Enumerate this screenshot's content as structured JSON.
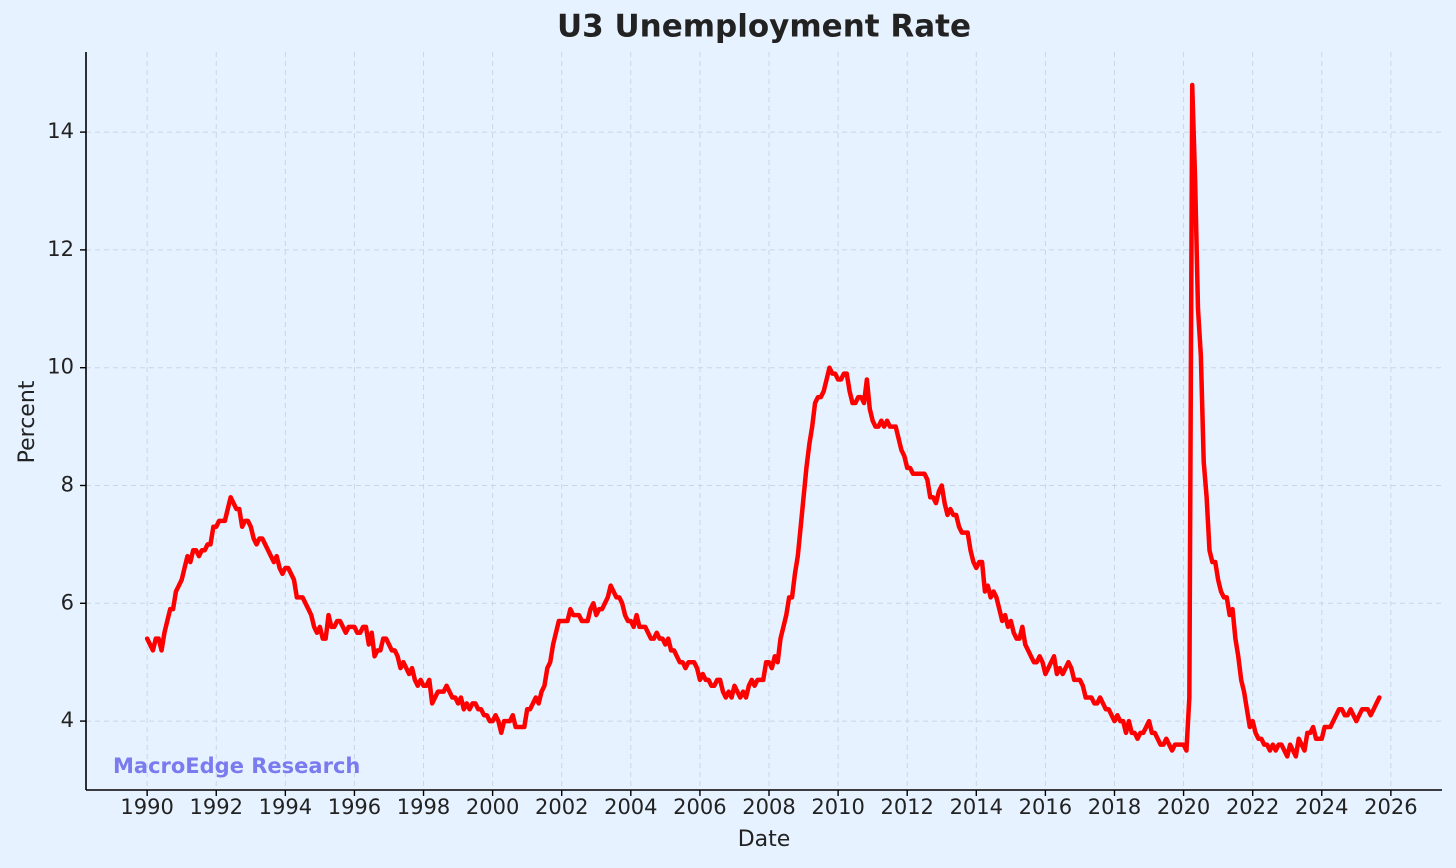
{
  "chart_data": {
    "type": "line",
    "title": "U3 Unemployment Rate",
    "xlabel": "Date",
    "ylabel": "Percent",
    "annotation": "MacroEdge Research",
    "color": "#ff0000",
    "grid": true,
    "xlim": [
      1988.23,
      2027.48
    ],
    "ylim": [
      2.83,
      15.36
    ],
    "xticks": [
      1990,
      1992,
      1994,
      1996,
      1998,
      2000,
      2002,
      2004,
      2006,
      2008,
      2010,
      2012,
      2014,
      2016,
      2018,
      2020,
      2022,
      2024,
      2026
    ],
    "yticks": [
      4,
      6,
      8,
      10,
      12,
      14
    ],
    "x": [
      1990,
      1990.083,
      1990.167,
      1990.25,
      1990.333,
      1990.417,
      1990.5,
      1990.583,
      1990.667,
      1990.75,
      1990.833,
      1990.917,
      1991,
      1991.083,
      1991.167,
      1991.25,
      1991.333,
      1991.417,
      1991.5,
      1991.583,
      1991.667,
      1991.75,
      1991.833,
      1991.917,
      1992,
      1992.083,
      1992.167,
      1992.25,
      1992.333,
      1992.417,
      1992.5,
      1992.583,
      1992.667,
      1992.75,
      1992.833,
      1992.917,
      1993,
      1993.083,
      1993.167,
      1993.25,
      1993.333,
      1993.417,
      1993.5,
      1993.583,
      1993.667,
      1993.75,
      1993.833,
      1993.917,
      1994,
      1994.083,
      1994.167,
      1994.25,
      1994.333,
      1994.417,
      1994.5,
      1994.583,
      1994.667,
      1994.75,
      1994.833,
      1994.917,
      1995,
      1995.083,
      1995.167,
      1995.25,
      1995.333,
      1995.417,
      1995.5,
      1995.583,
      1995.667,
      1995.75,
      1995.833,
      1995.917,
      1996,
      1996.083,
      1996.167,
      1996.25,
      1996.333,
      1996.417,
      1996.5,
      1996.583,
      1996.667,
      1996.75,
      1996.833,
      1996.917,
      1997,
      1997.083,
      1997.167,
      1997.25,
      1997.333,
      1997.417,
      1997.5,
      1997.583,
      1997.667,
      1997.75,
      1997.833,
      1997.917,
      1998,
      1998.083,
      1998.167,
      1998.25,
      1998.333,
      1998.417,
      1998.5,
      1998.583,
      1998.667,
      1998.75,
      1998.833,
      1998.917,
      1999,
      1999.083,
      1999.167,
      1999.25,
      1999.333,
      1999.417,
      1999.5,
      1999.583,
      1999.667,
      1999.75,
      1999.833,
      1999.917,
      2000,
      2000.083,
      2000.167,
      2000.25,
      2000.333,
      2000.417,
      2000.5,
      2000.583,
      2000.667,
      2000.75,
      2000.833,
      2000.917,
      2001,
      2001.083,
      2001.167,
      2001.25,
      2001.333,
      2001.417,
      2001.5,
      2001.583,
      2001.667,
      2001.75,
      2001.833,
      2001.917,
      2002,
      2002.083,
      2002.167,
      2002.25,
      2002.333,
      2002.417,
      2002.5,
      2002.583,
      2002.667,
      2002.75,
      2002.833,
      2002.917,
      2003,
      2003.083,
      2003.167,
      2003.25,
      2003.333,
      2003.417,
      2003.5,
      2003.583,
      2003.667,
      2003.75,
      2003.833,
      2003.917,
      2004,
      2004.083,
      2004.167,
      2004.25,
      2004.333,
      2004.417,
      2004.5,
      2004.583,
      2004.667,
      2004.75,
      2004.833,
      2004.917,
      2005,
      2005.083,
      2005.167,
      2005.25,
      2005.333,
      2005.417,
      2005.5,
      2005.583,
      2005.667,
      2005.75,
      2005.833,
      2005.917,
      2006,
      2006.083,
      2006.167,
      2006.25,
      2006.333,
      2006.417,
      2006.5,
      2006.583,
      2006.667,
      2006.75,
      2006.833,
      2006.917,
      2007,
      2007.083,
      2007.167,
      2007.25,
      2007.333,
      2007.417,
      2007.5,
      2007.583,
      2007.667,
      2007.75,
      2007.833,
      2007.917,
      2008,
      2008.083,
      2008.167,
      2008.25,
      2008.333,
      2008.417,
      2008.5,
      2008.583,
      2008.667,
      2008.75,
      2008.833,
      2008.917,
      2009,
      2009.083,
      2009.167,
      2009.25,
      2009.333,
      2009.417,
      2009.5,
      2009.583,
      2009.667,
      2009.75,
      2009.833,
      2009.917,
      2010,
      2010.083,
      2010.167,
      2010.25,
      2010.333,
      2010.417,
      2010.5,
      2010.583,
      2010.667,
      2010.75,
      2010.833,
      2010.917,
      2011,
      2011.083,
      2011.167,
      2011.25,
      2011.333,
      2011.417,
      2011.5,
      2011.583,
      2011.667,
      2011.75,
      2011.833,
      2011.917,
      2012,
      2012.083,
      2012.167,
      2012.25,
      2012.333,
      2012.417,
      2012.5,
      2012.583,
      2012.667,
      2012.75,
      2012.833,
      2012.917,
      2013,
      2013.083,
      2013.167,
      2013.25,
      2013.333,
      2013.417,
      2013.5,
      2013.583,
      2013.667,
      2013.75,
      2013.833,
      2013.917,
      2014,
      2014.083,
      2014.167,
      2014.25,
      2014.333,
      2014.417,
      2014.5,
      2014.583,
      2014.667,
      2014.75,
      2014.833,
      2014.917,
      2015,
      2015.083,
      2015.167,
      2015.25,
      2015.333,
      2015.417,
      2015.5,
      2015.583,
      2015.667,
      2015.75,
      2015.833,
      2015.917,
      2016,
      2016.083,
      2016.167,
      2016.25,
      2016.333,
      2016.417,
      2016.5,
      2016.583,
      2016.667,
      2016.75,
      2016.833,
      2016.917,
      2017,
      2017.083,
      2017.167,
      2017.25,
      2017.333,
      2017.417,
      2017.5,
      2017.583,
      2017.667,
      2017.75,
      2017.833,
      2017.917,
      2018,
      2018.083,
      2018.167,
      2018.25,
      2018.333,
      2018.417,
      2018.5,
      2018.583,
      2018.667,
      2018.75,
      2018.833,
      2018.917,
      2019,
      2019.083,
      2019.167,
      2019.25,
      2019.333,
      2019.417,
      2019.5,
      2019.583,
      2019.667,
      2019.75,
      2019.833,
      2019.917,
      2020,
      2020.083,
      2020.167,
      2020.25,
      2020.333,
      2020.417,
      2020.5,
      2020.583,
      2020.667,
      2020.75,
      2020.833,
      2020.917,
      2021,
      2021.083,
      2021.167,
      2021.25,
      2021.333,
      2021.417,
      2021.5,
      2021.583,
      2021.667,
      2021.75,
      2021.833,
      2021.917,
      2022,
      2022.083,
      2022.167,
      2022.25,
      2022.333,
      2022.417,
      2022.5,
      2022.583,
      2022.667,
      2022.75,
      2022.833,
      2022.917,
      2023,
      2023.083,
      2023.167,
      2023.25,
      2023.333,
      2023.417,
      2023.5,
      2023.583,
      2023.667,
      2023.75,
      2023.833,
      2023.917,
      2024,
      2024.083,
      2024.167,
      2024.25,
      2024.333,
      2024.417,
      2024.5,
      2024.583,
      2024.667,
      2024.75,
      2024.833,
      2024.917,
      2025,
      2025.083,
      2025.167,
      2025.25,
      2025.333,
      2025.417,
      2025.5,
      2025.583,
      2025.667
    ],
    "values": [
      5.4,
      5.3,
      5.2,
      5.4,
      5.4,
      5.2,
      5.5,
      5.7,
      5.9,
      5.9,
      6.2,
      6.3,
      6.4,
      6.6,
      6.8,
      6.7,
      6.9,
      6.9,
      6.8,
      6.9,
      6.9,
      7.0,
      7.0,
      7.3,
      7.3,
      7.4,
      7.4,
      7.4,
      7.6,
      7.8,
      7.7,
      7.6,
      7.6,
      7.3,
      7.4,
      7.4,
      7.3,
      7.1,
      7.0,
      7.1,
      7.1,
      7.0,
      6.9,
      6.8,
      6.7,
      6.8,
      6.6,
      6.5,
      6.6,
      6.6,
      6.5,
      6.4,
      6.1,
      6.1,
      6.1,
      6.0,
      5.9,
      5.8,
      5.6,
      5.5,
      5.6,
      5.4,
      5.4,
      5.8,
      5.6,
      5.6,
      5.7,
      5.7,
      5.6,
      5.5,
      5.6,
      5.6,
      5.6,
      5.5,
      5.5,
      5.6,
      5.6,
      5.3,
      5.5,
      5.1,
      5.2,
      5.2,
      5.4,
      5.4,
      5.3,
      5.2,
      5.2,
      5.1,
      4.9,
      5.0,
      4.9,
      4.8,
      4.9,
      4.7,
      4.6,
      4.7,
      4.6,
      4.6,
      4.7,
      4.3,
      4.4,
      4.5,
      4.5,
      4.5,
      4.6,
      4.5,
      4.4,
      4.4,
      4.3,
      4.4,
      4.2,
      4.3,
      4.2,
      4.3,
      4.3,
      4.2,
      4.2,
      4.1,
      4.1,
      4.0,
      4.0,
      4.1,
      4.0,
      3.8,
      4.0,
      4.0,
      4.0,
      4.1,
      3.9,
      3.9,
      3.9,
      3.9,
      4.2,
      4.2,
      4.3,
      4.4,
      4.3,
      4.5,
      4.6,
      4.9,
      5.0,
      5.3,
      5.5,
      5.7,
      5.7,
      5.7,
      5.7,
      5.9,
      5.8,
      5.8,
      5.8,
      5.7,
      5.7,
      5.7,
      5.9,
      6.0,
      5.8,
      5.9,
      5.9,
      6.0,
      6.1,
      6.3,
      6.2,
      6.1,
      6.1,
      6.0,
      5.8,
      5.7,
      5.7,
      5.6,
      5.8,
      5.6,
      5.6,
      5.6,
      5.5,
      5.4,
      5.4,
      5.5,
      5.4,
      5.4,
      5.3,
      5.4,
      5.2,
      5.2,
      5.1,
      5.0,
      5.0,
      4.9,
      5.0,
      5.0,
      5.0,
      4.9,
      4.7,
      4.8,
      4.7,
      4.7,
      4.6,
      4.6,
      4.7,
      4.7,
      4.5,
      4.4,
      4.5,
      4.4,
      4.6,
      4.5,
      4.4,
      4.5,
      4.4,
      4.6,
      4.7,
      4.6,
      4.7,
      4.7,
      4.7,
      5.0,
      5.0,
      4.9,
      5.1,
      5.0,
      5.4,
      5.6,
      5.8,
      6.1,
      6.1,
      6.5,
      6.8,
      7.3,
      7.8,
      8.3,
      8.7,
      9.0,
      9.4,
      9.5,
      9.5,
      9.6,
      9.8,
      10.0,
      9.9,
      9.9,
      9.8,
      9.8,
      9.9,
      9.9,
      9.6,
      9.4,
      9.4,
      9.5,
      9.5,
      9.4,
      9.8,
      9.3,
      9.1,
      9.0,
      9.0,
      9.1,
      9.0,
      9.1,
      9.0,
      9.0,
      9.0,
      8.8,
      8.6,
      8.5,
      8.3,
      8.3,
      8.2,
      8.2,
      8.2,
      8.2,
      8.2,
      8.1,
      7.8,
      7.8,
      7.7,
      7.9,
      8.0,
      7.7,
      7.5,
      7.6,
      7.5,
      7.5,
      7.3,
      7.2,
      7.2,
      7.2,
      6.9,
      6.7,
      6.6,
      6.7,
      6.7,
      6.2,
      6.3,
      6.1,
      6.2,
      6.1,
      5.9,
      5.7,
      5.8,
      5.6,
      5.7,
      5.5,
      5.4,
      5.4,
      5.6,
      5.3,
      5.2,
      5.1,
      5.0,
      5.0,
      5.1,
      5.0,
      4.8,
      4.9,
      5.0,
      5.1,
      4.8,
      4.9,
      4.8,
      4.9,
      5.0,
      4.9,
      4.7,
      4.7,
      4.7,
      4.6,
      4.4,
      4.4,
      4.4,
      4.3,
      4.3,
      4.4,
      4.3,
      4.2,
      4.2,
      4.1,
      4.0,
      4.1,
      4.0,
      4.0,
      3.8,
      4.0,
      3.8,
      3.8,
      3.7,
      3.8,
      3.8,
      3.9,
      4.0,
      3.8,
      3.8,
      3.7,
      3.6,
      3.6,
      3.7,
      3.6,
      3.5,
      3.6,
      3.6,
      3.6,
      3.6,
      3.5,
      4.4,
      14.8,
      13.2,
      11.0,
      10.2,
      8.4,
      7.8,
      6.9,
      6.7,
      6.7,
      6.4,
      6.2,
      6.1,
      6.1,
      5.8,
      5.9,
      5.4,
      5.1,
      4.7,
      4.5,
      4.2,
      3.9,
      4.0,
      3.8,
      3.7,
      3.7,
      3.6,
      3.6,
      3.5,
      3.6,
      3.5,
      3.6,
      3.6,
      3.5,
      3.4,
      3.6,
      3.5,
      3.4,
      3.7,
      3.6,
      3.5,
      3.8,
      3.8,
      3.9,
      3.7,
      3.7,
      3.7,
      3.9,
      3.9,
      3.9,
      4.0,
      4.1,
      4.2,
      4.2,
      4.1,
      4.1,
      4.2,
      4.1,
      4.0,
      4.1,
      4.2,
      4.2,
      4.2,
      4.1,
      4.2,
      4.3,
      4.4
    ]
  }
}
